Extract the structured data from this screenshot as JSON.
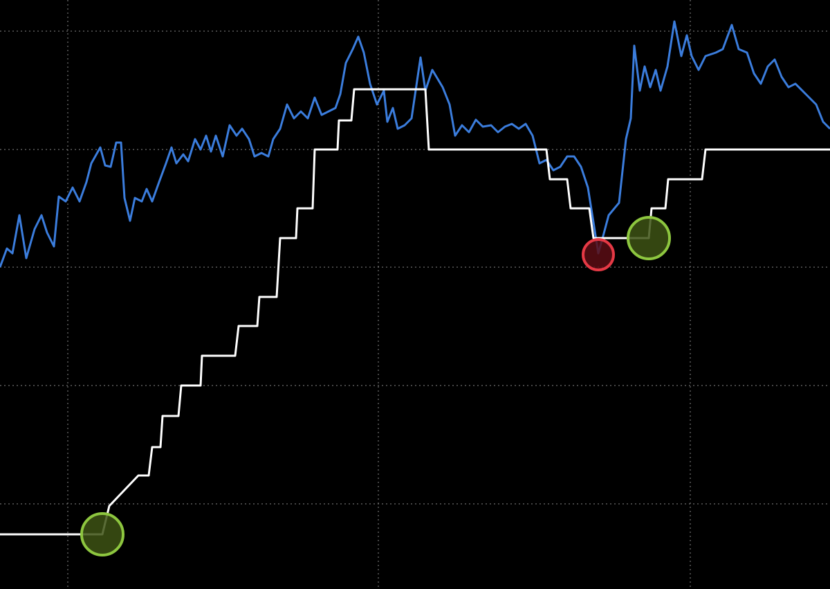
{
  "chart_data": {
    "type": "line",
    "xlim": [
      0,
      1200
    ],
    "ylim": [
      0,
      851
    ],
    "xticks": [
      98,
      547,
      998
    ],
    "yticks": [
      123,
      294,
      465,
      635,
      806
    ],
    "grid": true,
    "background": "#000000",
    "series": [
      {
        "color": "#3b7ddd",
        "x": [
          0,
          10,
          18,
          28,
          38,
          50,
          60,
          68,
          78,
          85,
          95,
          105,
          115,
          125,
          132,
          145,
          152,
          160,
          168,
          175,
          180,
          188,
          195,
          205,
          212,
          220,
          230,
          240,
          248,
          255,
          265,
          272,
          282,
          290,
          298,
          305,
          312,
          322,
          332,
          342,
          350,
          360,
          368,
          378,
          388,
          395,
          405,
          415,
          425,
          435,
          445,
          455,
          465,
          475,
          485,
          492,
          500,
          510,
          518,
          526,
          535,
          545,
          555,
          560,
          568,
          575,
          585,
          595,
          608,
          615,
          625,
          640,
          650,
          658,
          668,
          678,
          688,
          698,
          710,
          720,
          730,
          740,
          750,
          760,
          770,
          780,
          790,
          800,
          810,
          820,
          830,
          840,
          850,
          858,
          865,
          872,
          880,
          895,
          905,
          912,
          917,
          925,
          932,
          940,
          948,
          955,
          965,
          975,
          985,
          993,
          1000,
          1010,
          1020,
          1035,
          1045,
          1058,
          1068,
          1080,
          1090,
          1100,
          1110,
          1120,
          1130,
          1140,
          1150,
          1165,
          1180,
          1190,
          1200
        ],
        "values": [
          465,
          492,
          485,
          540,
          478,
          520,
          540,
          515,
          495,
          567,
          560,
          580,
          560,
          588,
          615,
          638,
          612,
          610,
          645,
          645,
          565,
          532,
          565,
          560,
          578,
          560,
          588,
          615,
          638,
          615,
          628,
          618,
          650,
          635,
          655,
          632,
          655,
          625,
          670,
          655,
          665,
          650,
          625,
          630,
          625,
          650,
          665,
          700,
          680,
          690,
          680,
          710,
          685,
          690,
          695,
          715,
          760,
          780,
          798,
          775,
          730,
          700,
          720,
          675,
          695,
          665,
          670,
          680,
          768,
          720,
          750,
          725,
          700,
          655,
          670,
          660,
          678,
          668,
          670,
          660,
          668,
          672,
          665,
          672,
          655,
          615,
          620,
          605,
          610,
          625,
          625,
          610,
          580,
          530,
          485,
          510,
          540,
          558,
          650,
          680,
          785,
          720,
          755,
          725,
          750,
          720,
          755,
          820,
          770,
          800,
          770,
          750,
          770,
          775,
          780,
          815,
          780,
          775,
          745,
          730,
          755,
          765,
          740,
          725,
          730,
          715,
          700,
          675,
          665
        ]
      },
      {
        "color": "#ffffff",
        "x": [
          0,
          148,
          158,
          200,
          215,
          220,
          232,
          235,
          258,
          262,
          290,
          292,
          340,
          345,
          372,
          375,
          400,
          405,
          428,
          430,
          452,
          455,
          488,
          490,
          508,
          512,
          615,
          620,
          790,
          795,
          820,
          825,
          852,
          858,
          938,
          942,
          962,
          966,
          1015,
          1020,
          1200
        ],
        "values": [
          79,
          79,
          120,
          164,
          164,
          205,
          205,
          250,
          250,
          294,
          294,
          337,
          337,
          380,
          380,
          422,
          422,
          507,
          507,
          550,
          550,
          635,
          635,
          677,
          677,
          722,
          722,
          635,
          635,
          592,
          592,
          550,
          550,
          507,
          507,
          550,
          550,
          592,
          592,
          635,
          635
        ]
      }
    ],
    "markers": [
      {
        "x": 148,
        "y": 79,
        "color": "#8dc63f",
        "fill": "#3d5214"
      },
      {
        "x": 865,
        "y": 483,
        "color": "#e53945",
        "fill": "#5a0d14"
      },
      {
        "x": 938,
        "y": 507,
        "color": "#8dc63f",
        "fill": "#3d5214"
      }
    ]
  }
}
